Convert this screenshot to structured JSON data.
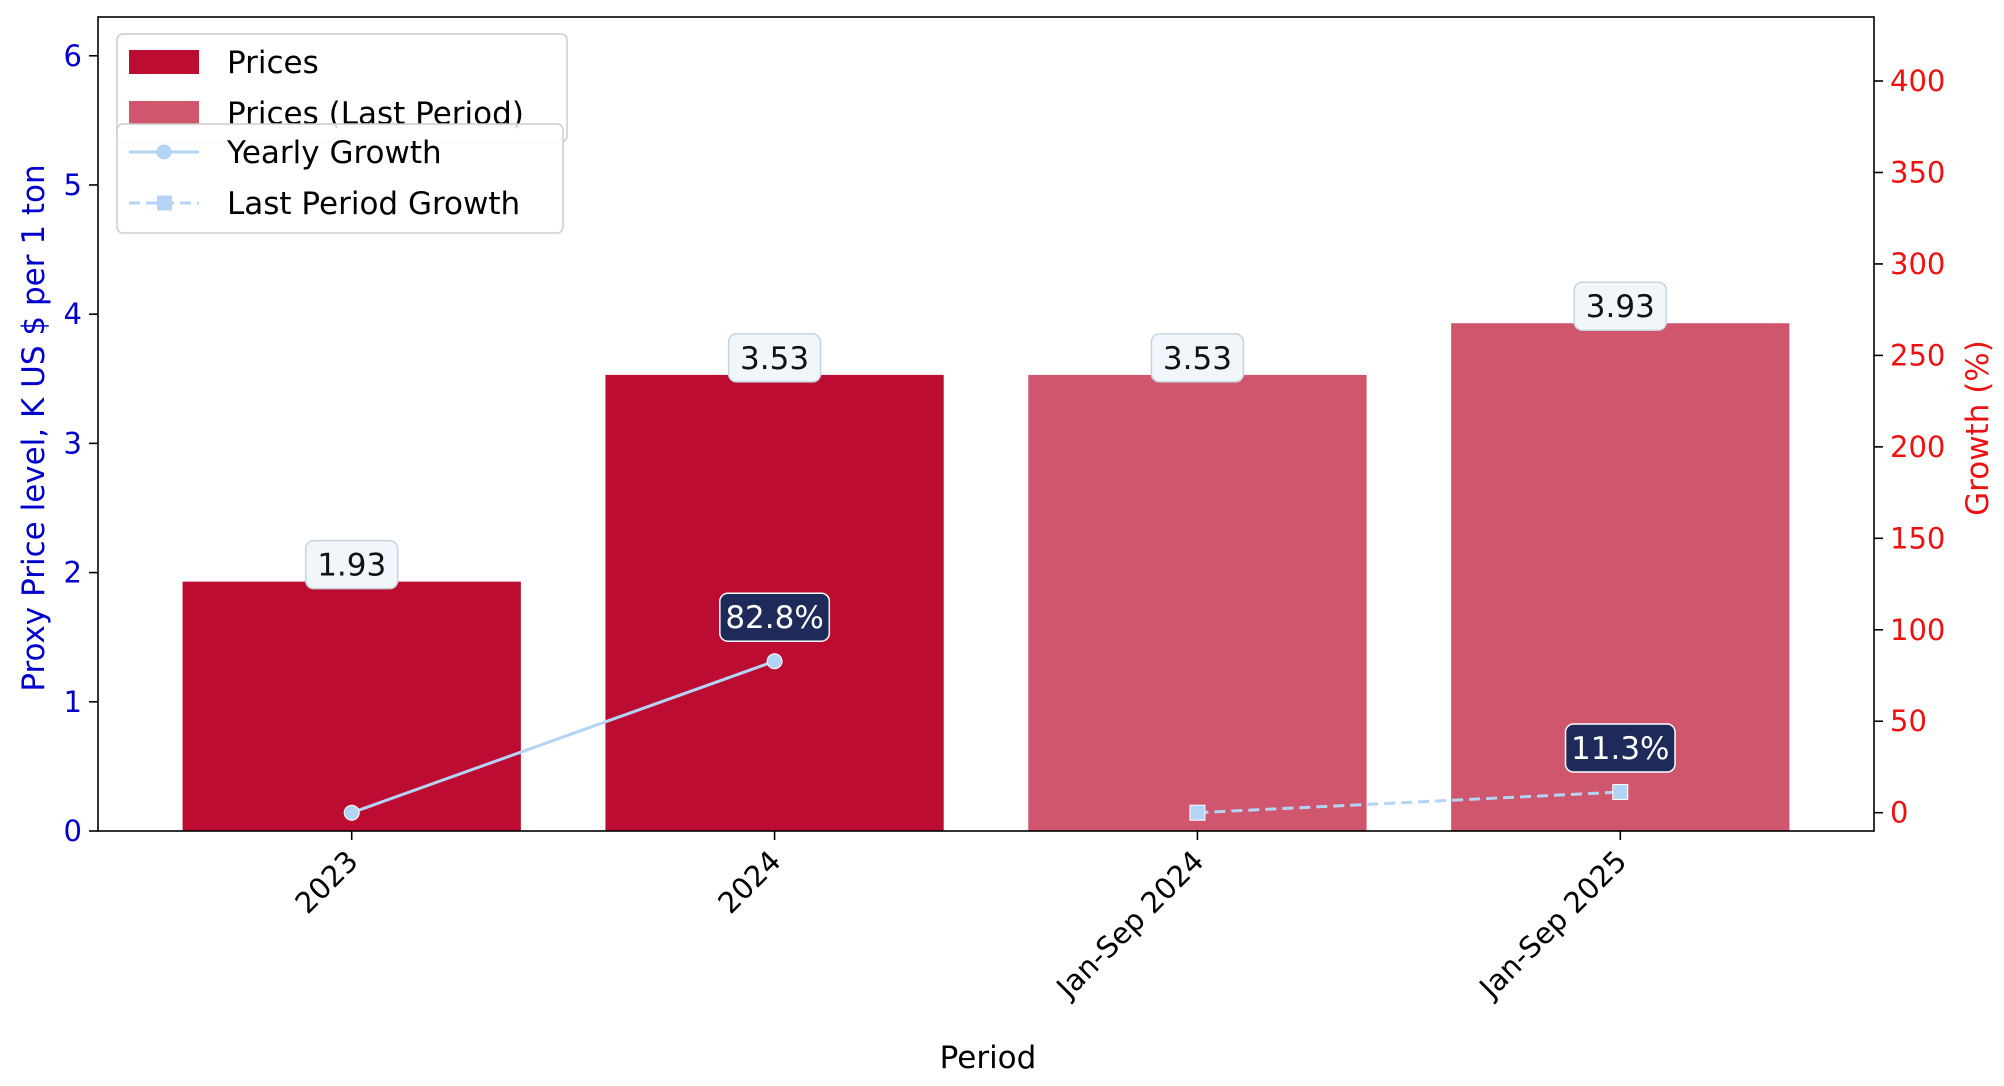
{
  "chart_data": {
    "type": "bar",
    "categories": [
      "2023",
      "2024",
      "Jan-Sep 2024",
      "Jan-Sep 2025"
    ],
    "xlabel": "Period",
    "ylabel_left": "Proxy Price level, K US $ per 1 ton",
    "ylabel_right": "Growth (%)",
    "ylim_left": [
      0,
      6.3
    ],
    "ylim_right": [
      -10,
      435
    ],
    "left_ticks": [
      "0",
      "1",
      "2",
      "3",
      "4",
      "5",
      "6"
    ],
    "right_ticks": [
      "0",
      "50",
      "100",
      "150",
      "200",
      "250",
      "300",
      "350",
      "400"
    ],
    "series": [
      {
        "name": "Prices",
        "kind": "bar",
        "color": "#bd0c32",
        "values": [
          1.93,
          3.53,
          null,
          null
        ],
        "labels": [
          "1.93",
          "3.53",
          "",
          ""
        ]
      },
      {
        "name": "Prices (Last Period)",
        "kind": "bar",
        "color": "#d0566e",
        "values": [
          null,
          null,
          3.53,
          3.93
        ],
        "labels": [
          "",
          "",
          "3.53",
          "3.93"
        ]
      },
      {
        "name": "Yearly Growth",
        "kind": "line",
        "marker": "circle",
        "dash": "solid",
        "color": "#b3d4f5",
        "axis": "right",
        "values": [
          0,
          82.8,
          null,
          null
        ],
        "labels": [
          "",
          "82.8%",
          "",
          ""
        ]
      },
      {
        "name": "Last Period Growth",
        "kind": "line",
        "marker": "square",
        "dash": "dashed",
        "color": "#b3d4f5",
        "axis": "right",
        "values": [
          null,
          null,
          0,
          11.3
        ],
        "labels": [
          "",
          "",
          "",
          "11.3%"
        ]
      }
    ],
    "left_axis_color": "#0000cc",
    "right_axis_color": "#ee1111",
    "label_box_color": "#f0f6fa",
    "growth_box_color": "#1e2a5a",
    "legend_position": "top-left",
    "grid": false
  }
}
